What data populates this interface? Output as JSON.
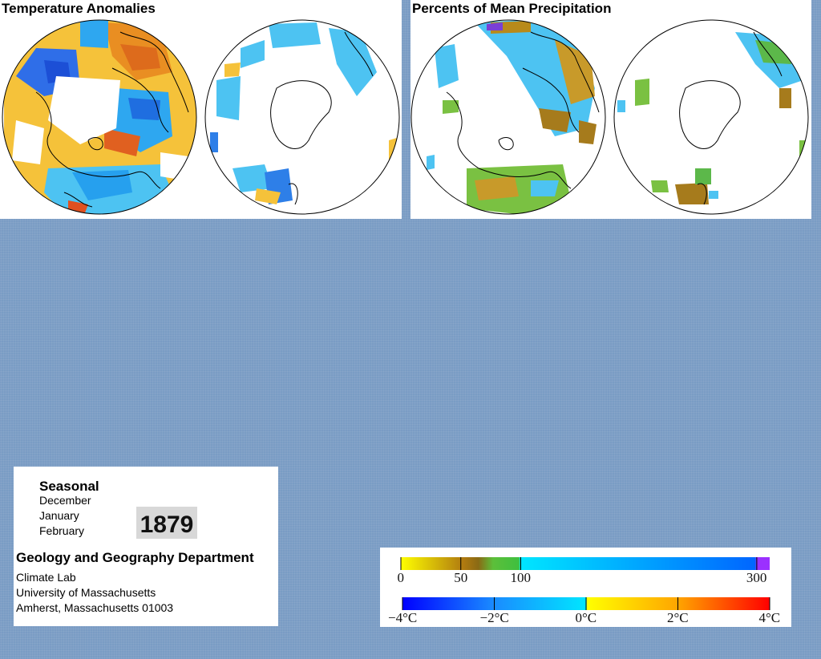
{
  "temperature_panel": {
    "title": "Temperature Anomalies"
  },
  "precipitation_panel": {
    "title": "Percents of Mean Precipitation"
  },
  "info": {
    "season_label": "Seasonal",
    "months": [
      "December",
      "January",
      "February"
    ],
    "year": "1879",
    "department": "Geology and Geography Department",
    "lab": "Climate Lab",
    "university": "University of Massachusetts",
    "address": "Amherst, Massachusetts 01003"
  },
  "legend": {
    "precipitation": {
      "ticks": [
        {
          "label": "0",
          "value": 0
        },
        {
          "label": "50",
          "value": 50
        },
        {
          "label": "100",
          "value": 100
        },
        {
          "label": "300",
          "value": 300
        }
      ],
      "colors": [
        "#ffff00",
        "#b07a10",
        "#3fbf3f",
        "#00e6ff",
        "#0066ff",
        "#9b30ff"
      ]
    },
    "temperature": {
      "ticks": [
        {
          "label": "−4°C",
          "value": -4
        },
        {
          "label": "−2°C",
          "value": -2
        },
        {
          "label": "0°C",
          "value": 0
        },
        {
          "label": "2°C",
          "value": 2
        },
        {
          "label": "4°C",
          "value": 4
        }
      ],
      "colors": [
        "#0000ff",
        "#1a8cff",
        "#00e6ff",
        "#ffff00",
        "#ffa500",
        "#ff0000"
      ]
    }
  }
}
